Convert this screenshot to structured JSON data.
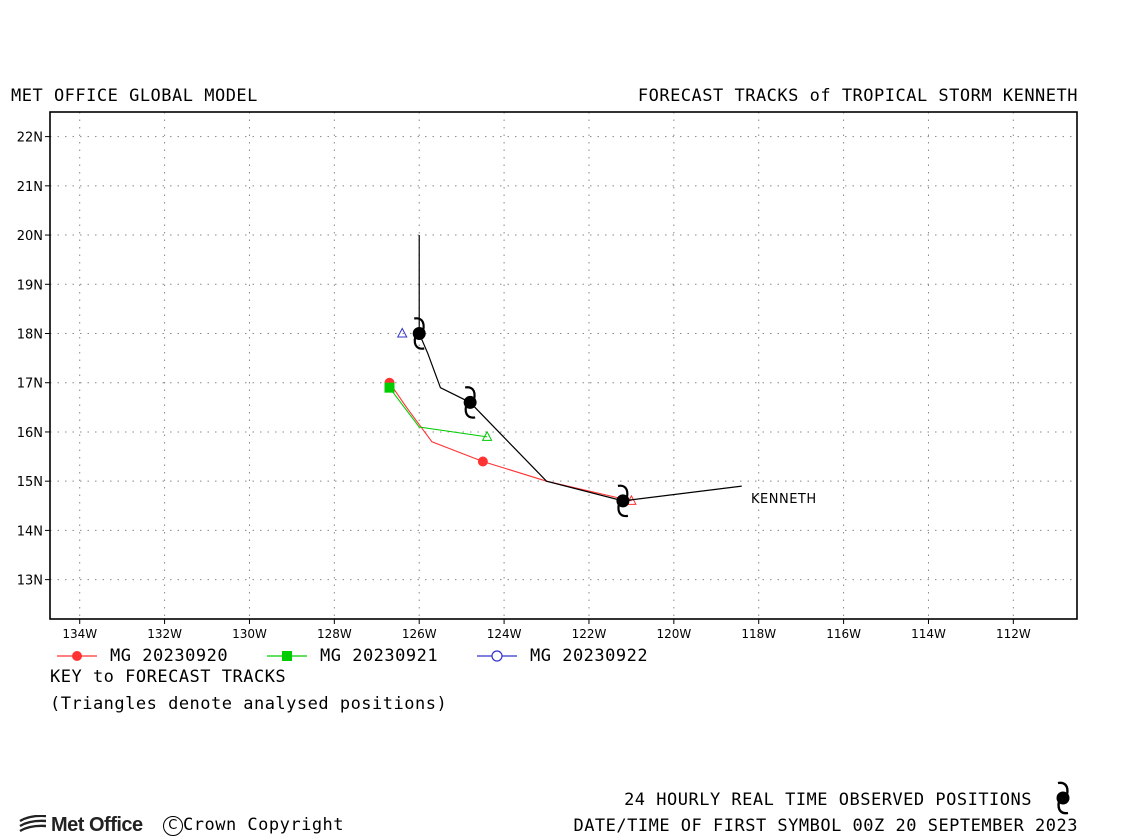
{
  "header": {
    "left_title": "MET OFFICE GLOBAL MODEL",
    "right_title": "FORECAST TRACKS of TROPICAL STORM KENNETH"
  },
  "chart_data": {
    "type": "line",
    "title": "FORECAST TRACKS of TROPICAL STORM KENNETH",
    "x_unit": "degrees longitude (W negative)",
    "xlim": [
      -134.7,
      -110.5
    ],
    "ylim": [
      12.2,
      22.5
    ],
    "xticks": [
      -134,
      -132,
      -130,
      -128,
      -126,
      -124,
      -122,
      -120,
      -118,
      -116,
      -114,
      -112
    ],
    "xtick_labels": [
      "134W",
      "132W",
      "130W",
      "128W",
      "126W",
      "124W",
      "122W",
      "120W",
      "118W",
      "116W",
      "114W",
      "112W"
    ],
    "yticks": [
      13,
      14,
      15,
      16,
      17,
      18,
      19,
      20,
      21,
      22
    ],
    "ytick_labels": [
      "13N",
      "14N",
      "15N",
      "16N",
      "17N",
      "18N",
      "19N",
      "20N",
      "21N",
      "22N"
    ],
    "grid": true,
    "observed_track": {
      "name": "KENNETH",
      "color": "#000000",
      "points": [
        [
          -118.4,
          14.9
        ],
        [
          -121.2,
          14.6
        ],
        [
          -123.0,
          15.0
        ],
        [
          -124.8,
          16.6
        ],
        [
          -125.5,
          16.9
        ],
        [
          -125.8,
          17.6
        ],
        [
          -126.0,
          18.0
        ],
        [
          -126.0,
          20.0
        ]
      ],
      "symbols": [
        [
          -121.2,
          14.6
        ],
        [
          -124.8,
          16.6
        ],
        [
          -126.0,
          18.0
        ]
      ]
    },
    "series": [
      {
        "name": "MG 20230920",
        "color": "#ff3333",
        "marker": "circle-filled",
        "points": [
          [
            -121.0,
            14.6
          ],
          [
            -123.0,
            15.0
          ],
          [
            -124.5,
            15.4
          ],
          [
            -125.7,
            15.8
          ],
          [
            -126.3,
            16.5
          ],
          [
            -126.7,
            17.0
          ]
        ],
        "markers": [
          [
            -124.5,
            15.4
          ],
          [
            -126.7,
            17.0
          ]
        ],
        "analysed": [
          -121.0,
          14.6
        ]
      },
      {
        "name": "MG 20230921",
        "color": "#00cc00",
        "marker": "square-filled",
        "points": [
          [
            -124.4,
            15.9
          ],
          [
            -126.0,
            16.1
          ],
          [
            -126.7,
            16.9
          ]
        ],
        "markers": [
          [
            -126.7,
            16.9
          ]
        ],
        "analysed": [
          -124.4,
          15.9
        ]
      },
      {
        "name": "MG 20230922",
        "color": "#3333cc",
        "marker": "circle-open",
        "points": [],
        "markers": [],
        "analysed": [
          -126.4,
          18.0
        ]
      }
    ]
  },
  "legend": {
    "items": [
      "MG 20230920",
      "MG 20230921",
      "MG 20230922"
    ],
    "key_title": "KEY to FORECAST TRACKS",
    "note": "(Triangles denote analysed positions)"
  },
  "footer": {
    "observed_line": "24 HOURLY REAL TIME OBSERVED POSITIONS",
    "datetime_line": "DATE/TIME OF FIRST SYMBOL 00Z 20 SEPTEMBER 2023",
    "logo_text": "Met Office",
    "copyright": "Crown Copyright"
  }
}
